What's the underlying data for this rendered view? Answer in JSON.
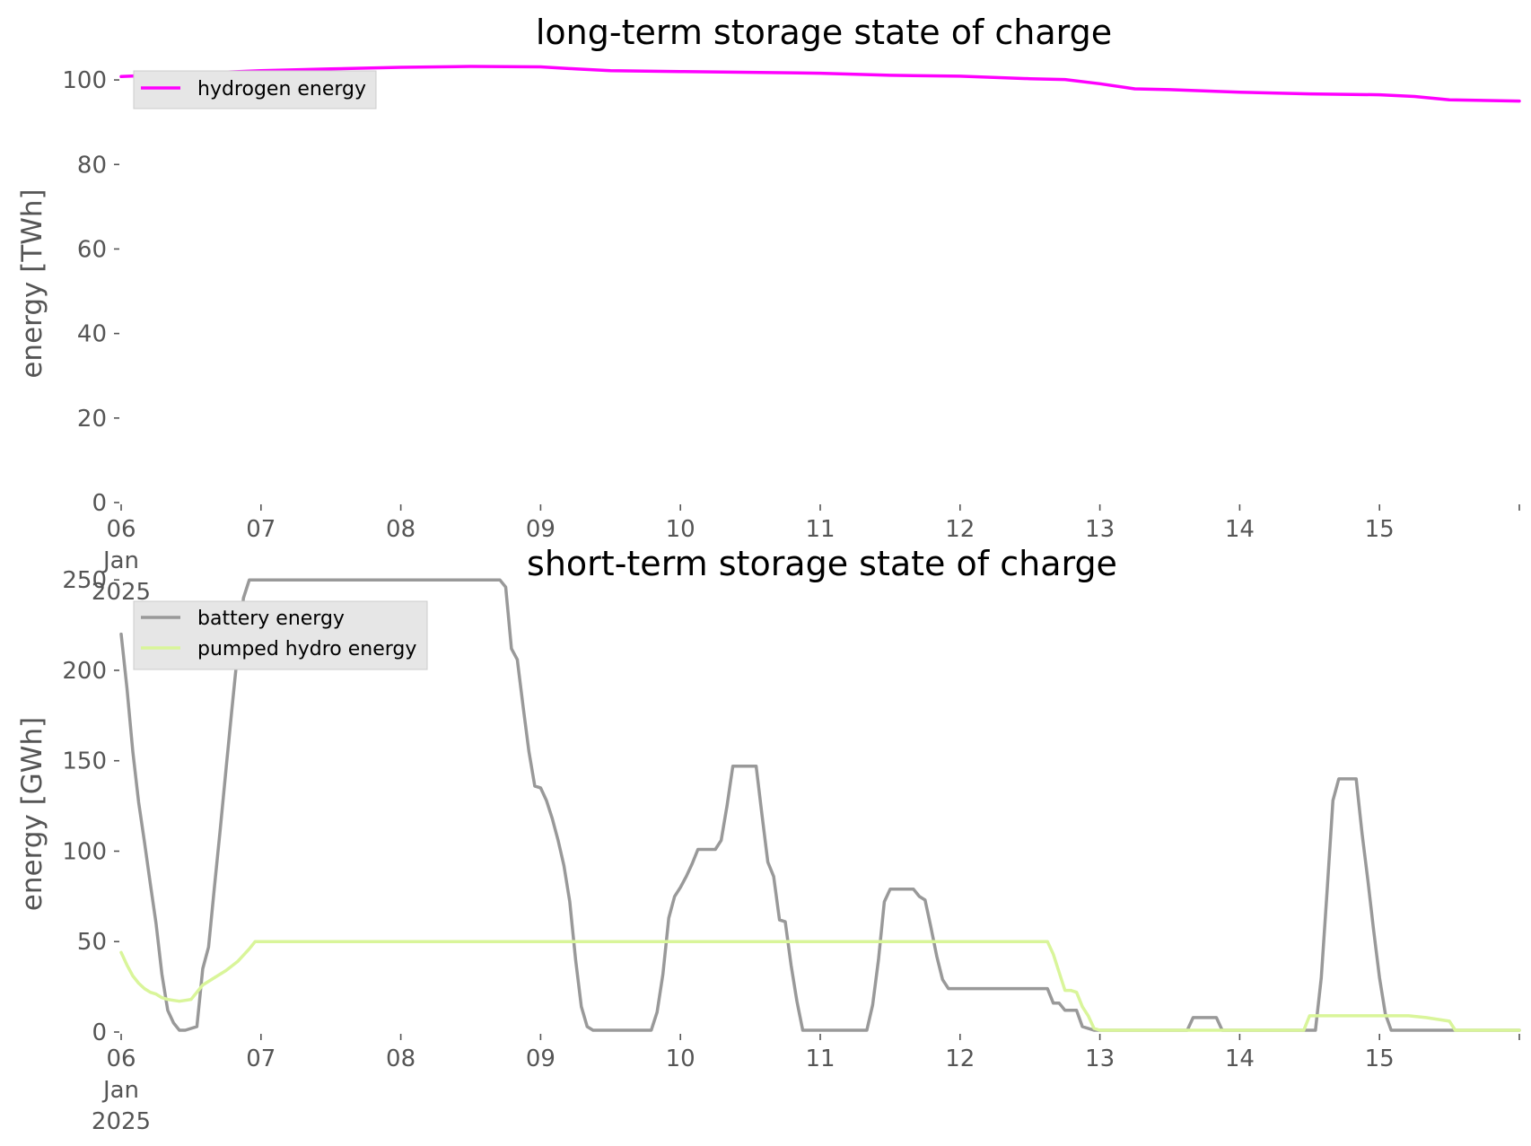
{
  "chart_data": [
    {
      "type": "line",
      "title": "long-term storage state of charge",
      "ylabel": "energy [TWh]",
      "xlabel": "",
      "xlim": [
        "2025-01-06",
        "2025-01-16"
      ],
      "ylim": [
        0,
        110
      ],
      "yticks": [
        0,
        20,
        40,
        60,
        80,
        100
      ],
      "xticks": [
        {
          "date": "2025-01-06",
          "lines": [
            "06",
            "Jan",
            "2025"
          ]
        },
        {
          "date": "2025-01-07",
          "lines": [
            "07"
          ]
        },
        {
          "date": "2025-01-08",
          "lines": [
            "08"
          ]
        },
        {
          "date": "2025-01-09",
          "lines": [
            "09"
          ]
        },
        {
          "date": "2025-01-10",
          "lines": [
            "10"
          ]
        },
        {
          "date": "2025-01-11",
          "lines": [
            "11"
          ]
        },
        {
          "date": "2025-01-12",
          "lines": [
            "12"
          ]
        },
        {
          "date": "2025-01-13",
          "lines": [
            "13"
          ]
        },
        {
          "date": "2025-01-14",
          "lines": [
            "14"
          ]
        },
        {
          "date": "2025-01-15",
          "lines": [
            "15"
          ]
        },
        {
          "date": "2025-01-16",
          "lines": [
            ""
          ]
        }
      ],
      "grid": false,
      "legend_position": "upper-left",
      "series": [
        {
          "name": "hydrogen energy",
          "color": "#ff00ff",
          "points": [
            [
              "2025-01-06 00:00",
              100.8
            ],
            [
              "2025-01-06 12:00",
              101.5
            ],
            [
              "2025-01-07 00:00",
              102.2
            ],
            [
              "2025-01-07 12:00",
              102.6
            ],
            [
              "2025-01-08 00:00",
              103.0
            ],
            [
              "2025-01-08 12:00",
              103.2
            ],
            [
              "2025-01-09 00:00",
              103.1
            ],
            [
              "2025-01-09 06:00",
              102.6
            ],
            [
              "2025-01-09 12:00",
              102.2
            ],
            [
              "2025-01-10 00:00",
              102.0
            ],
            [
              "2025-01-10 12:00",
              101.8
            ],
            [
              "2025-01-11 00:00",
              101.6
            ],
            [
              "2025-01-11 12:00",
              101.1
            ],
            [
              "2025-01-12 00:00",
              100.9
            ],
            [
              "2025-01-12 12:00",
              100.3
            ],
            [
              "2025-01-12 18:00",
              100.1
            ],
            [
              "2025-01-13 00:00",
              99.1
            ],
            [
              "2025-01-13 06:00",
              97.9
            ],
            [
              "2025-01-13 12:00",
              97.7
            ],
            [
              "2025-01-14 00:00",
              97.1
            ],
            [
              "2025-01-14 12:00",
              96.7
            ],
            [
              "2025-01-15 00:00",
              96.5
            ],
            [
              "2025-01-15 06:00",
              96.1
            ],
            [
              "2025-01-15 12:00",
              95.3
            ],
            [
              "2025-01-16 00:00",
              95.0
            ]
          ]
        }
      ]
    },
    {
      "type": "line",
      "title": "short-term storage state of charge",
      "ylabel": "energy [GWh]",
      "xlabel": "",
      "xlim": [
        "2025-01-06",
        "2025-01-16"
      ],
      "ylim": [
        0,
        262
      ],
      "yticks": [
        0,
        50,
        100,
        150,
        200,
        250
      ],
      "xticks": [
        {
          "date": "2025-01-06",
          "lines": [
            "06",
            "Jan",
            "2025"
          ]
        },
        {
          "date": "2025-01-07",
          "lines": [
            "07"
          ]
        },
        {
          "date": "2025-01-08",
          "lines": [
            "08"
          ]
        },
        {
          "date": "2025-01-09",
          "lines": [
            "09"
          ]
        },
        {
          "date": "2025-01-10",
          "lines": [
            "10"
          ]
        },
        {
          "date": "2025-01-11",
          "lines": [
            "11"
          ]
        },
        {
          "date": "2025-01-12",
          "lines": [
            "12"
          ]
        },
        {
          "date": "2025-01-13",
          "lines": [
            "13"
          ]
        },
        {
          "date": "2025-01-14",
          "lines": [
            "14"
          ]
        },
        {
          "date": "2025-01-15",
          "lines": [
            "15"
          ]
        },
        {
          "date": "2025-01-16",
          "lines": [
            ""
          ]
        }
      ],
      "grid": false,
      "legend_position": "upper-left",
      "series": [
        {
          "name": "battery energy",
          "color": "#999999",
          "points": [
            [
              "2025-01-06 00:00",
              220
            ],
            [
              "2025-01-06 01:00",
              190
            ],
            [
              "2025-01-06 02:00",
              155
            ],
            [
              "2025-01-06 03:00",
              127
            ],
            [
              "2025-01-06 04:00",
              105
            ],
            [
              "2025-01-06 05:00",
              82
            ],
            [
              "2025-01-06 06:00",
              60
            ],
            [
              "2025-01-06 07:00",
              32
            ],
            [
              "2025-01-06 08:00",
              12
            ],
            [
              "2025-01-06 09:00",
              5
            ],
            [
              "2025-01-06 10:00",
              1
            ],
            [
              "2025-01-06 11:00",
              1
            ],
            [
              "2025-01-06 13:00",
              3
            ],
            [
              "2025-01-06 14:00",
              35
            ],
            [
              "2025-01-06 15:00",
              47
            ],
            [
              "2025-01-06 16:00",
              80
            ],
            [
              "2025-01-06 17:00",
              112
            ],
            [
              "2025-01-06 18:00",
              145
            ],
            [
              "2025-01-06 19:00",
              178
            ],
            [
              "2025-01-06 20:00",
              210
            ],
            [
              "2025-01-06 21:00",
              240
            ],
            [
              "2025-01-06 22:00",
              250
            ],
            [
              "2025-01-08 17:00",
              250
            ],
            [
              "2025-01-08 18:00",
              246
            ],
            [
              "2025-01-08 19:00",
              212
            ],
            [
              "2025-01-08 20:00",
              206
            ],
            [
              "2025-01-08 21:00",
              180
            ],
            [
              "2025-01-08 22:00",
              155
            ],
            [
              "2025-01-08 23:00",
              136
            ],
            [
              "2025-01-09 00:00",
              135
            ],
            [
              "2025-01-09 01:00",
              128
            ],
            [
              "2025-01-09 02:00",
              118
            ],
            [
              "2025-01-09 03:00",
              106
            ],
            [
              "2025-01-09 04:00",
              92
            ],
            [
              "2025-01-09 05:00",
              72
            ],
            [
              "2025-01-09 06:00",
              40
            ],
            [
              "2025-01-09 07:00",
              14
            ],
            [
              "2025-01-09 08:00",
              3
            ],
            [
              "2025-01-09 09:00",
              1
            ],
            [
              "2025-01-09 19:00",
              1
            ],
            [
              "2025-01-09 20:00",
              11
            ],
            [
              "2025-01-09 21:00",
              32
            ],
            [
              "2025-01-09 22:00",
              63
            ],
            [
              "2025-01-09 23:00",
              75
            ],
            [
              "2025-01-10 00:00",
              80
            ],
            [
              "2025-01-10 01:00",
              86
            ],
            [
              "2025-01-10 02:00",
              93
            ],
            [
              "2025-01-10 03:00",
              101
            ],
            [
              "2025-01-10 06:00",
              101
            ],
            [
              "2025-01-10 07:00",
              106
            ],
            [
              "2025-01-10 08:00",
              125
            ],
            [
              "2025-01-10 09:00",
              147
            ],
            [
              "2025-01-10 13:00",
              147
            ],
            [
              "2025-01-10 14:00",
              120
            ],
            [
              "2025-01-10 15:00",
              94
            ],
            [
              "2025-01-10 16:00",
              86
            ],
            [
              "2025-01-10 17:00",
              62
            ],
            [
              "2025-01-10 18:00",
              61
            ],
            [
              "2025-01-10 19:00",
              37
            ],
            [
              "2025-01-10 20:00",
              17
            ],
            [
              "2025-01-10 21:00",
              1
            ],
            [
              "2025-01-11 08:00",
              1
            ],
            [
              "2025-01-11 09:00",
              15
            ],
            [
              "2025-01-11 10:00",
              40
            ],
            [
              "2025-01-11 11:00",
              72
            ],
            [
              "2025-01-11 12:00",
              79
            ],
            [
              "2025-01-11 16:00",
              79
            ],
            [
              "2025-01-11 17:00",
              75
            ],
            [
              "2025-01-11 18:00",
              73
            ],
            [
              "2025-01-11 19:00",
              58
            ],
            [
              "2025-01-11 20:00",
              42
            ],
            [
              "2025-01-11 21:00",
              29
            ],
            [
              "2025-01-11 22:00",
              24
            ],
            [
              "2025-01-12 15:00",
              24
            ],
            [
              "2025-01-12 16:00",
              16
            ],
            [
              "2025-01-12 17:00",
              16
            ],
            [
              "2025-01-12 18:00",
              12
            ],
            [
              "2025-01-12 20:00",
              12
            ],
            [
              "2025-01-12 21:00",
              3
            ],
            [
              "2025-01-12 23:00",
              1
            ],
            [
              "2025-01-13 15:00",
              1
            ],
            [
              "2025-01-13 16:00",
              8
            ],
            [
              "2025-01-13 20:00",
              8
            ],
            [
              "2025-01-13 21:00",
              1
            ],
            [
              "2025-01-14 13:00",
              1
            ],
            [
              "2025-01-14 14:00",
              30
            ],
            [
              "2025-01-14 15:00",
              78
            ],
            [
              "2025-01-14 16:00",
              128
            ],
            [
              "2025-01-14 17:00",
              140
            ],
            [
              "2025-01-14 20:00",
              140
            ],
            [
              "2025-01-14 21:00",
              110
            ],
            [
              "2025-01-14 22:00",
              84
            ],
            [
              "2025-01-14 23:00",
              56
            ],
            [
              "2025-01-15 00:00",
              30
            ],
            [
              "2025-01-15 01:00",
              10
            ],
            [
              "2025-01-15 02:00",
              1
            ],
            [
              "2025-01-16 00:00",
              1
            ]
          ]
        },
        {
          "name": "pumped hydro energy",
          "color": "#d9f59a",
          "points": [
            [
              "2025-01-06 00:00",
              44
            ],
            [
              "2025-01-06 01:00",
              37
            ],
            [
              "2025-01-06 02:00",
              31
            ],
            [
              "2025-01-06 03:00",
              27
            ],
            [
              "2025-01-06 04:00",
              24
            ],
            [
              "2025-01-06 05:00",
              22
            ],
            [
              "2025-01-06 06:00",
              21
            ],
            [
              "2025-01-06 07:00",
              19
            ],
            [
              "2025-01-06 08:00",
              18
            ],
            [
              "2025-01-06 09:00",
              17.5
            ],
            [
              "2025-01-06 10:00",
              17
            ],
            [
              "2025-01-06 12:00",
              18
            ],
            [
              "2025-01-06 14:00",
              26
            ],
            [
              "2025-01-06 16:00",
              30
            ],
            [
              "2025-01-06 18:00",
              34
            ],
            [
              "2025-01-06 20:00",
              39
            ],
            [
              "2025-01-06 22:00",
              46
            ],
            [
              "2025-01-06 23:00",
              50
            ],
            [
              "2025-01-12 15:00",
              50
            ],
            [
              "2025-01-12 16:00",
              43
            ],
            [
              "2025-01-12 17:00",
              33
            ],
            [
              "2025-01-12 18:00",
              23
            ],
            [
              "2025-01-12 19:00",
              23
            ],
            [
              "2025-01-12 20:00",
              22
            ],
            [
              "2025-01-12 21:00",
              14
            ],
            [
              "2025-01-12 22:00",
              9
            ],
            [
              "2025-01-12 23:00",
              2
            ],
            [
              "2025-01-13 00:00",
              1
            ],
            [
              "2025-01-14 11:00",
              1
            ],
            [
              "2025-01-14 12:00",
              9
            ],
            [
              "2025-01-15 05:00",
              9
            ],
            [
              "2025-01-15 08:00",
              8
            ],
            [
              "2025-01-15 12:00",
              6
            ],
            [
              "2025-01-15 13:00",
              1
            ],
            [
              "2025-01-16 00:00",
              1
            ]
          ]
        }
      ]
    }
  ]
}
